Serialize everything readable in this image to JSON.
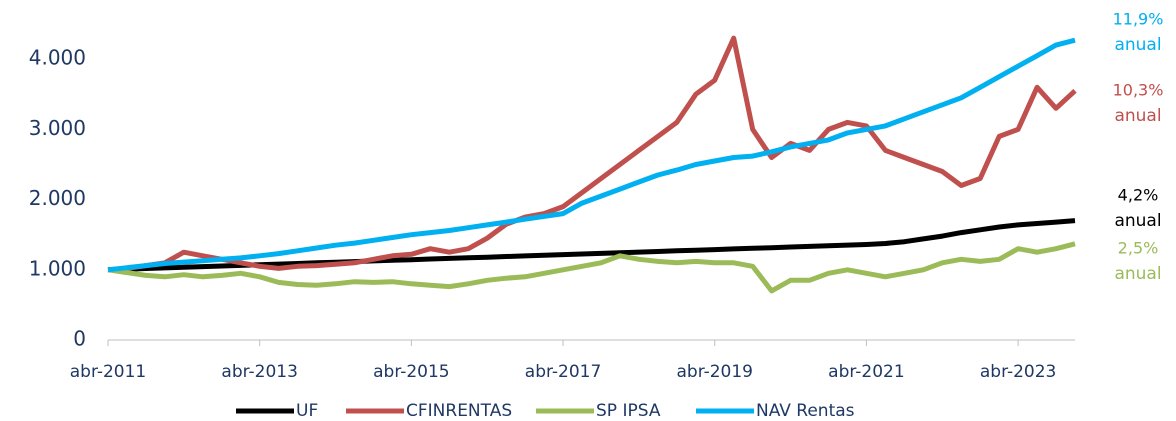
{
  "chart_data": {
    "type": "line",
    "x": [
      2011.25,
      2011.5,
      2011.75,
      2012.0,
      2012.25,
      2012.5,
      2012.75,
      2013.0,
      2013.25,
      2013.5,
      2013.75,
      2014.0,
      2014.25,
      2014.5,
      2014.75,
      2015.0,
      2015.25,
      2015.5,
      2015.75,
      2016.0,
      2016.25,
      2016.5,
      2016.75,
      2017.0,
      2017.25,
      2017.5,
      2017.75,
      2018.0,
      2018.25,
      2018.5,
      2018.75,
      2019.0,
      2019.25,
      2019.5,
      2019.75,
      2020.0,
      2020.25,
      2020.5,
      2020.75,
      2021.0,
      2021.25,
      2021.5,
      2021.75,
      2022.0,
      2022.25,
      2022.5,
      2022.75,
      2023.0,
      2023.25,
      2023.5,
      2023.75,
      2024.0
    ],
    "series": [
      {
        "name": "UF",
        "color": "#000000",
        "values": [
          1000,
          1009,
          1018,
          1027,
          1036,
          1045,
          1054,
          1063,
          1072,
          1081,
          1090,
          1099,
          1108,
          1117,
          1126,
          1135,
          1144,
          1153,
          1162,
          1171,
          1180,
          1189,
          1198,
          1207,
          1216,
          1225,
          1234,
          1243,
          1252,
          1261,
          1270,
          1279,
          1288,
          1297,
          1306,
          1315,
          1324,
          1333,
          1342,
          1351,
          1360,
          1375,
          1400,
          1440,
          1480,
          1530,
          1570,
          1610,
          1640,
          1660,
          1680,
          1700
        ]
      },
      {
        "name": "CFINRENTAS",
        "color": "#c0504d",
        "values": [
          1000,
          1020,
          1060,
          1100,
          1250,
          1200,
          1150,
          1100,
          1050,
          1020,
          1050,
          1060,
          1080,
          1100,
          1150,
          1200,
          1220,
          1300,
          1250,
          1300,
          1450,
          1650,
          1750,
          1800,
          1900,
          2100,
          2300,
          2500,
          2700,
          2900,
          3100,
          3500,
          3700,
          4300,
          3000,
          2600,
          2800,
          2700,
          3000,
          3100,
          3050,
          2700,
          2600,
          2500,
          2400,
          2200,
          2300,
          2900,
          3000,
          3600,
          3300,
          3550
        ]
      },
      {
        "name": "SP IPSA",
        "color": "#9bbb59",
        "values": [
          1000,
          960,
          920,
          900,
          930,
          900,
          920,
          950,
          900,
          820,
          790,
          780,
          800,
          830,
          820,
          830,
          800,
          780,
          760,
          800,
          850,
          880,
          900,
          950,
          1000,
          1050,
          1100,
          1200,
          1150,
          1120,
          1100,
          1120,
          1100,
          1100,
          1050,
          700,
          850,
          850,
          950,
          1000,
          950,
          900,
          950,
          1000,
          1100,
          1150,
          1120,
          1150,
          1300,
          1250,
          1300,
          1370
        ]
      },
      {
        "name": "NAV Rentas",
        "color": "#00b0f0",
        "values": [
          1000,
          1030,
          1060,
          1090,
          1110,
          1130,
          1150,
          1170,
          1200,
          1230,
          1270,
          1310,
          1350,
          1380,
          1420,
          1460,
          1500,
          1530,
          1560,
          1600,
          1640,
          1680,
          1720,
          1760,
          1800,
          1950,
          2050,
          2150,
          2250,
          2350,
          2420,
          2500,
          2550,
          2600,
          2620,
          2680,
          2750,
          2800,
          2850,
          2950,
          3000,
          3050,
          3150,
          3250,
          3350,
          3450,
          3600,
          3750,
          3900,
          4050,
          4200,
          4270
        ]
      }
    ],
    "xlim": [
      2011.25,
      2024.0
    ],
    "xticks": [
      {
        "value": 2011.25,
        "label": "abr-2011"
      },
      {
        "value": 2013.25,
        "label": "abr-2013"
      },
      {
        "value": 2015.25,
        "label": "abr-2015"
      },
      {
        "value": 2017.25,
        "label": "abr-2017"
      },
      {
        "value": 2019.25,
        "label": "abr-2019"
      },
      {
        "value": 2021.25,
        "label": "abr-2021"
      },
      {
        "value": 2023.25,
        "label": "abr-2023"
      }
    ],
    "ylim": [
      0,
      4800
    ],
    "yticks": [
      0,
      {
        "value": 1000,
        "label": "1.000"
      },
      {
        "value": 2000,
        "label": "2.000"
      },
      {
        "value": 3000,
        "label": "3.000"
      },
      {
        "value": 4000,
        "label": "4.000"
      }
    ],
    "legend": "bottom",
    "annotations": [
      {
        "lines": [
          "11,9%",
          "anual"
        ],
        "color": "#00b0f0"
      },
      {
        "lines": [
          "10,3%",
          "anual"
        ],
        "color": "#c0504d"
      },
      {
        "lines": [
          "4,2%",
          "anual"
        ],
        "color": "#000000"
      },
      {
        "lines": [
          "2,5%",
          "anual"
        ],
        "color": "#9bbb59"
      }
    ]
  }
}
